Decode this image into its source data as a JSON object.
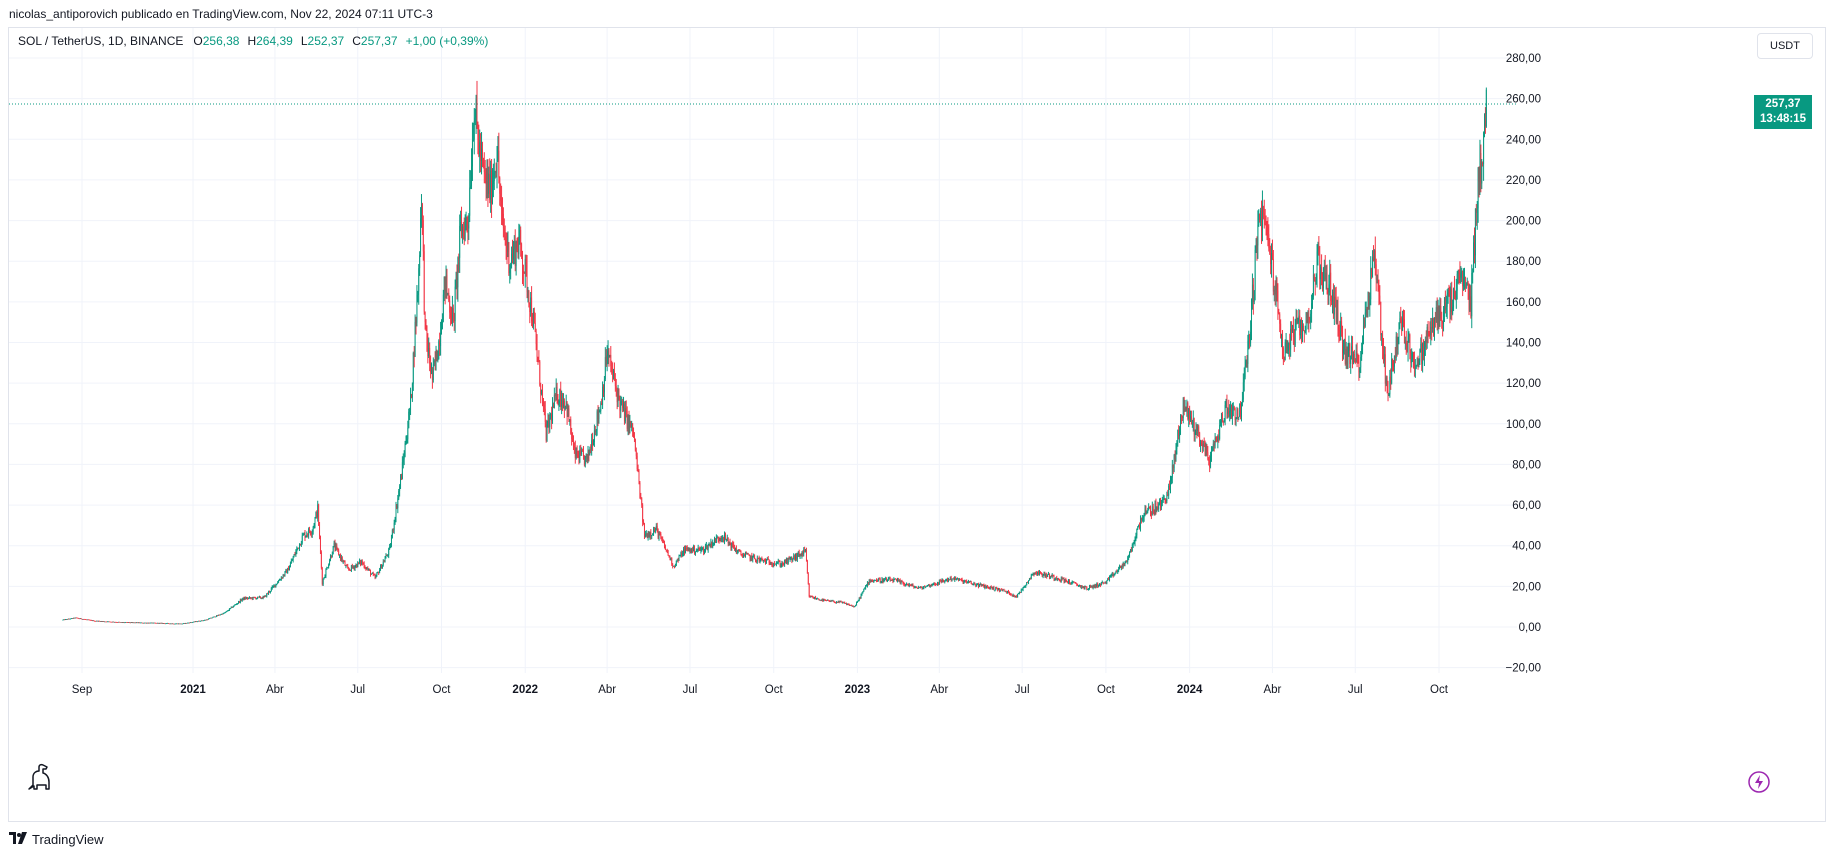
{
  "published_line": "nicolas_antiporovich publicado en TradingView.com, Nov 22, 2024 07:11 UTC-3",
  "legend": {
    "symbol": "SOL / TetherUS, 1D, BINANCE",
    "open_key": "O",
    "open": "256,38",
    "high_key": "H",
    "high": "264,39",
    "low_key": "L",
    "low": "252,37",
    "close_key": "C",
    "close": "257,37",
    "change": "+1,00 (+0,39%)"
  },
  "currency_button": "USDT",
  "price_tag": {
    "price": "257,37",
    "countdown": "13:48:15"
  },
  "footer_brand": "TradingView",
  "colors": {
    "up": "#089981",
    "down": "#f23645",
    "grid": "#f0f3fa",
    "text": "#131722",
    "bolt": "#9c27b0"
  },
  "icons": {
    "logo": "dinosaur-icon",
    "bolt": "lightning-icon",
    "brand": "tradingview-logo-icon"
  },
  "chart_data": {
    "type": "candlestick",
    "symbol": "SOL / TetherUS",
    "interval": "1D",
    "exchange": "BINANCE",
    "ylim": [
      -25,
      285
    ],
    "y_ticks": [
      280,
      260,
      240,
      220,
      200,
      180,
      160,
      140,
      120,
      100,
      80,
      60,
      40,
      20,
      0,
      -20
    ],
    "y_tick_labels": [
      "280,00",
      "260,00",
      "240,00",
      "220,00",
      "200,00",
      "180,00",
      "160,00",
      "140,00",
      "120,00",
      "100,00",
      "80,00",
      "60,00",
      "40,00",
      "20,00",
      "0,00",
      "−20,00"
    ],
    "x_ticks": [
      {
        "date": "2020-09-01",
        "label": "Sep"
      },
      {
        "date": "2021-01-01",
        "label": "2021",
        "bold": true
      },
      {
        "date": "2021-04-01",
        "label": "Abr"
      },
      {
        "date": "2021-07-01",
        "label": "Jul"
      },
      {
        "date": "2021-10-01",
        "label": "Oct"
      },
      {
        "date": "2022-01-01",
        "label": "2022",
        "bold": true
      },
      {
        "date": "2022-04-01",
        "label": "Abr"
      },
      {
        "date": "2022-07-01",
        "label": "Jul"
      },
      {
        "date": "2022-10-01",
        "label": "Oct"
      },
      {
        "date": "2023-01-01",
        "label": "2023",
        "bold": true
      },
      {
        "date": "2023-04-01",
        "label": "Abr"
      },
      {
        "date": "2023-07-01",
        "label": "Jul"
      },
      {
        "date": "2023-10-01",
        "label": "Oct"
      },
      {
        "date": "2024-01-01",
        "label": "2024",
        "bold": true
      },
      {
        "date": "2024-04-01",
        "label": "Abr"
      },
      {
        "date": "2024-07-01",
        "label": "Jul"
      },
      {
        "date": "2024-10-01",
        "label": "Oct"
      }
    ],
    "last_price": 257.37,
    "price_path": [
      [
        "2020-08-11",
        3.5
      ],
      [
        "2020-08-25",
        4.5
      ],
      [
        "2020-09-15",
        3.0
      ],
      [
        "2020-10-15",
        2.3
      ],
      [
        "2020-11-15",
        2.0
      ],
      [
        "2020-12-20",
        1.6
      ],
      [
        "2021-01-15",
        3.5
      ],
      [
        "2021-02-05",
        7
      ],
      [
        "2021-02-25",
        14
      ],
      [
        "2021-03-20",
        14.5
      ],
      [
        "2021-04-15",
        28
      ],
      [
        "2021-05-02",
        45
      ],
      [
        "2021-05-12",
        48
      ],
      [
        "2021-05-18",
        58
      ],
      [
        "2021-05-23",
        22
      ],
      [
        "2021-06-05",
        40
      ],
      [
        "2021-06-20",
        28
      ],
      [
        "2021-07-05",
        32
      ],
      [
        "2021-07-20",
        24
      ],
      [
        "2021-08-05",
        38
      ],
      [
        "2021-08-18",
        75
      ],
      [
        "2021-08-28",
        110
      ],
      [
        "2021-09-06",
        175
      ],
      [
        "2021-09-09",
        215
      ],
      [
        "2021-09-13",
        145
      ],
      [
        "2021-09-21",
        122
      ],
      [
        "2021-09-28",
        140
      ],
      [
        "2021-10-05",
        170
      ],
      [
        "2021-10-14",
        150
      ],
      [
        "2021-10-22",
        195
      ],
      [
        "2021-10-30",
        200
      ],
      [
        "2021-11-06",
        258
      ],
      [
        "2021-11-10",
        240
      ],
      [
        "2021-11-17",
        220
      ],
      [
        "2021-11-24",
        215
      ],
      [
        "2021-12-01",
        235
      ],
      [
        "2021-12-06",
        200
      ],
      [
        "2021-12-15",
        180
      ],
      [
        "2021-12-25",
        190
      ],
      [
        "2022-01-03",
        170
      ],
      [
        "2022-01-10",
        150
      ],
      [
        "2022-01-24",
        95
      ],
      [
        "2022-02-05",
        115
      ],
      [
        "2022-02-15",
        110
      ],
      [
        "2022-02-24",
        85
      ],
      [
        "2022-03-10",
        82
      ],
      [
        "2022-03-25",
        110
      ],
      [
        "2022-04-01",
        135
      ],
      [
        "2022-04-15",
        110
      ],
      [
        "2022-04-30",
        95
      ],
      [
        "2022-05-12",
        45
      ],
      [
        "2022-05-25",
        48
      ],
      [
        "2022-06-13",
        30
      ],
      [
        "2022-06-25",
        38
      ],
      [
        "2022-07-15",
        38
      ],
      [
        "2022-08-05",
        45
      ],
      [
        "2022-08-25",
        36
      ],
      [
        "2022-09-15",
        33
      ],
      [
        "2022-10-10",
        31
      ],
      [
        "2022-11-05",
        37
      ],
      [
        "2022-11-09",
        15
      ],
      [
        "2022-11-25",
        13
      ],
      [
        "2022-12-15",
        12
      ],
      [
        "2022-12-29",
        10
      ],
      [
        "2023-01-14",
        23
      ],
      [
        "2023-02-10",
        23
      ],
      [
        "2023-03-10",
        19
      ],
      [
        "2023-04-15",
        24
      ],
      [
        "2023-05-10",
        21
      ],
      [
        "2023-06-10",
        18
      ],
      [
        "2023-06-25",
        15
      ],
      [
        "2023-07-14",
        27
      ],
      [
        "2023-08-10",
        24
      ],
      [
        "2023-09-10",
        19
      ],
      [
        "2023-10-01",
        22
      ],
      [
        "2023-10-25",
        33
      ],
      [
        "2023-11-10",
        55
      ],
      [
        "2023-11-30",
        60
      ],
      [
        "2023-12-10",
        68
      ],
      [
        "2023-12-25",
        110
      ],
      [
        "2024-01-10",
        95
      ],
      [
        "2024-01-23",
        82
      ],
      [
        "2024-02-10",
        108
      ],
      [
        "2024-02-25",
        105
      ],
      [
        "2024-03-05",
        135
      ],
      [
        "2024-03-18",
        205
      ],
      [
        "2024-03-28",
        190
      ],
      [
        "2024-04-13",
        135
      ],
      [
        "2024-04-25",
        145
      ],
      [
        "2024-05-10",
        150
      ],
      [
        "2024-05-20",
        180
      ],
      [
        "2024-06-05",
        165
      ],
      [
        "2024-06-20",
        135
      ],
      [
        "2024-07-05",
        130
      ],
      [
        "2024-07-22",
        185
      ],
      [
        "2024-08-05",
        115
      ],
      [
        "2024-08-20",
        150
      ],
      [
        "2024-09-06",
        128
      ],
      [
        "2024-09-25",
        150
      ],
      [
        "2024-10-15",
        160
      ],
      [
        "2024-10-25",
        172
      ],
      [
        "2024-11-05",
        160
      ],
      [
        "2024-11-12",
        215
      ],
      [
        "2024-11-20",
        240
      ],
      [
        "2024-11-22",
        257.37
      ]
    ]
  }
}
